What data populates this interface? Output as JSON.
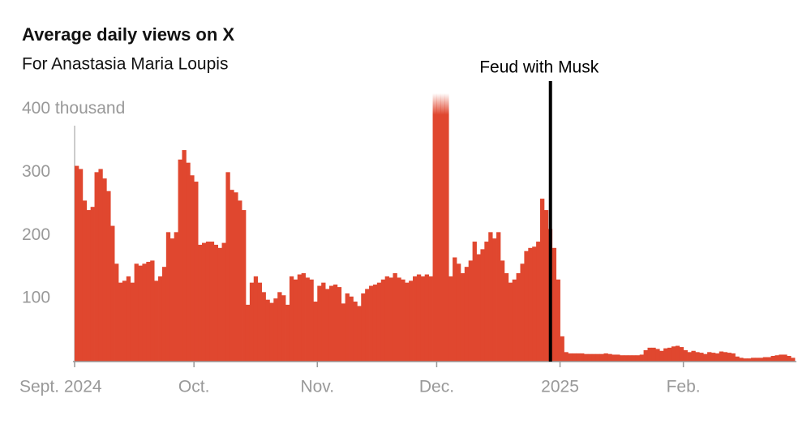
{
  "chart_data": {
    "type": "bar",
    "title": "Average daily views on X",
    "subtitle": "For Anastasia Maria Loupis",
    "categories": [
      "Sept. 2024",
      null,
      null,
      null,
      null,
      null,
      null,
      null,
      null,
      null,
      null,
      null,
      null,
      null,
      null,
      null,
      null,
      null,
      null,
      null,
      null,
      null,
      null,
      null,
      null,
      null,
      null,
      null,
      null,
      null,
      "Oct.",
      null,
      null,
      null,
      null,
      null,
      null,
      null,
      null,
      null,
      null,
      null,
      null,
      null,
      null,
      null,
      null,
      null,
      null,
      null,
      null,
      null,
      null,
      null,
      null,
      null,
      null,
      null,
      null,
      null,
      null,
      "Nov.",
      null,
      null,
      null,
      null,
      null,
      null,
      null,
      null,
      null,
      null,
      null,
      null,
      null,
      null,
      null,
      null,
      null,
      null,
      null,
      null,
      null,
      null,
      null,
      null,
      null,
      null,
      null,
      null,
      null,
      "Dec.",
      null,
      null,
      null,
      null,
      null,
      null,
      null,
      null,
      null,
      null,
      null,
      null,
      null,
      null,
      null,
      null,
      null,
      null,
      null,
      null,
      null,
      null,
      null,
      null,
      null,
      null,
      null,
      null,
      null,
      null,
      "2025",
      null,
      null,
      null,
      null,
      null,
      null,
      null,
      null,
      null,
      null,
      null,
      null,
      null,
      null,
      null,
      null,
      null,
      null,
      null,
      null,
      null,
      null,
      null,
      null,
      null,
      null,
      null,
      null,
      null,
      null,
      "Feb.",
      null,
      null,
      null,
      null,
      null,
      null,
      null,
      null,
      null,
      null,
      null,
      null,
      null,
      null,
      null,
      null,
      null,
      null,
      null,
      null,
      null,
      null,
      null,
      null,
      null,
      null,
      null
    ],
    "values": [
      310,
      305,
      255,
      240,
      245,
      300,
      305,
      290,
      270,
      215,
      155,
      125,
      128,
      135,
      125,
      155,
      152,
      155,
      158,
      160,
      128,
      135,
      150,
      205,
      195,
      205,
      320,
      335,
      315,
      295,
      285,
      185,
      188,
      190,
      190,
      185,
      180,
      188,
      300,
      272,
      268,
      255,
      240,
      90,
      125,
      135,
      125,
      110,
      98,
      93,
      100,
      110,
      105,
      90,
      135,
      130,
      138,
      140,
      133,
      130,
      95,
      120,
      125,
      115,
      120,
      122,
      118,
      92,
      108,
      103,
      95,
      88,
      108,
      115,
      120,
      122,
      125,
      130,
      135,
      133,
      140,
      133,
      130,
      125,
      128,
      135,
      138,
      135,
      138,
      135,
      440,
      440,
      440,
      440,
      135,
      165,
      155,
      140,
      150,
      160,
      190,
      170,
      178,
      190,
      205,
      195,
      205,
      160,
      140,
      125,
      130,
      140,
      155,
      175,
      180,
      182,
      190,
      258,
      240,
      210,
      180,
      130,
      40,
      15,
      13,
      13,
      13,
      13,
      12,
      12,
      12,
      12,
      12,
      13,
      12,
      11,
      11,
      10,
      10,
      10,
      10,
      10,
      11,
      18,
      22,
      22,
      20,
      17,
      21,
      22,
      24,
      25,
      23,
      18,
      15,
      17,
      15,
      14,
      12,
      15,
      14,
      13,
      16,
      15,
      14,
      13,
      8,
      6,
      5,
      5,
      6,
      6,
      6,
      7,
      7,
      9,
      10,
      11,
      11,
      9,
      6
    ],
    "color": "#e0472f",
    "ylim": [
      0,
      425
    ],
    "yticks": [
      100,
      200,
      300,
      {
        "value": 400,
        "label": "400 thousand"
      }
    ],
    "grid": false,
    "annotations": [
      {
        "label": "Feud with Musk",
        "index": 120
      }
    ]
  }
}
